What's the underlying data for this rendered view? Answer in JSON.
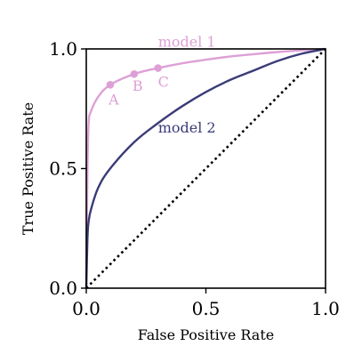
{
  "chart_data": {
    "type": "line",
    "xlabel": "False Positive Rate",
    "ylabel": "True Positive Rate",
    "xlim": [
      0.0,
      1.0
    ],
    "ylim": [
      0.0,
      1.0
    ],
    "x_ticks": [
      "0.0",
      "0.5",
      "1.0"
    ],
    "y_ticks": [
      "0.0",
      "0.5",
      "1.0"
    ],
    "grid": false,
    "legend": "none",
    "series": [
      {
        "name": "model 1",
        "color": "#dda0d6",
        "x": [
          0.0,
          0.005,
          0.01,
          0.02,
          0.05,
          0.1,
          0.2,
          0.3,
          0.4,
          0.5,
          0.6,
          0.7,
          0.8,
          0.9,
          1.0
        ],
        "y": [
          0.0,
          0.5,
          0.69,
          0.74,
          0.8,
          0.85,
          0.895,
          0.92,
          0.94,
          0.955,
          0.968,
          0.978,
          0.987,
          0.994,
          1.0
        ]
      },
      {
        "name": "model 2",
        "color": "#3b3b78",
        "x": [
          0.0,
          0.005,
          0.01,
          0.02,
          0.05,
          0.1,
          0.2,
          0.3,
          0.4,
          0.5,
          0.6,
          0.7,
          0.8,
          0.9,
          1.0
        ],
        "y": [
          0.0,
          0.21,
          0.28,
          0.33,
          0.42,
          0.5,
          0.61,
          0.69,
          0.76,
          0.82,
          0.87,
          0.91,
          0.95,
          0.98,
          1.0
        ]
      },
      {
        "color": "#000000",
        "style": "dotted",
        "x": [
          0.0,
          1.0
        ],
        "y": [
          0.0,
          1.0
        ]
      }
    ],
    "points": [
      {
        "label": "A",
        "x": 0.1,
        "y": 0.85,
        "color": "#dda0d6"
      },
      {
        "label": "B",
        "x": 0.2,
        "y": 0.895,
        "color": "#dda0d6"
      },
      {
        "label": "C",
        "x": 0.3,
        "y": 0.92,
        "color": "#dda0d6"
      }
    ]
  }
}
